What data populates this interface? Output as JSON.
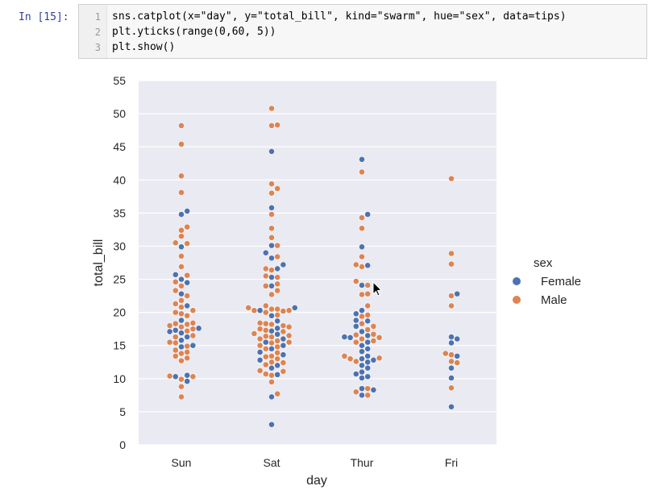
{
  "cell": {
    "prompt": "In [15]:",
    "line_numbers": [
      "1",
      "2",
      "3"
    ],
    "lines": [
      "sns.catplot(x=\"day\", y=\"total_bill\", kind=\"swarm\", hue=\"sex\", data=tips)",
      "plt.yticks(range(0,60, 5))",
      "plt.show()"
    ]
  },
  "chart_data": {
    "type": "scatter",
    "subtype": "swarm",
    "title": "",
    "xlabel": "day",
    "ylabel": "total_bill",
    "categories": [
      "Sun",
      "Sat",
      "Thur",
      "Fri"
    ],
    "ylim": [
      0,
      55
    ],
    "yticks": [
      "0",
      "5",
      "10",
      "15",
      "20",
      "25",
      "30",
      "35",
      "40",
      "45",
      "50",
      "55"
    ],
    "grid": true,
    "background": "#eaeaf2",
    "legend": {
      "title": "sex",
      "placement": "right"
    },
    "series": [
      {
        "name": "Female",
        "color": "#4c72b0",
        "points": {
          "Sun": [
            35.3,
            34.8,
            29.9,
            25.7,
            25.0,
            24.5,
            22.8,
            21.0,
            18.8,
            17.6,
            17.3,
            17.1,
            16.9,
            16.3,
            15.8,
            15.0,
            14.8,
            10.5,
            10.3,
            9.6
          ],
          "Sat": [
            44.3,
            35.8,
            30.1,
            29.0,
            28.2,
            27.2,
            26.6,
            25.3,
            24.0,
            20.7,
            20.3,
            19.5,
            18.7,
            17.6,
            17.2,
            16.7,
            16.0,
            15.5,
            15.0,
            14.5,
            14.0,
            13.6,
            12.8,
            12.0,
            11.6,
            10.6,
            7.25,
            3.07
          ],
          "Thur": [
            43.1,
            34.8,
            29.9,
            27.1,
            24.1,
            20.3,
            19.8,
            18.8,
            18.7,
            17.9,
            17.1,
            16.5,
            16.3,
            16.2,
            15.5,
            15.0,
            14.5,
            14.1,
            13.4,
            13.0,
            12.8,
            12.5,
            12.0,
            11.6,
            11.0,
            10.7,
            10.3,
            10.1,
            8.5,
            8.3,
            7.5
          ],
          "Fri": [
            22.8,
            16.3,
            16.0,
            15.4,
            13.4,
            11.6,
            10.1,
            5.75
          ]
        }
      },
      {
        "name": "Male",
        "color": "#dd8452",
        "points": {
          "Sun": [
            48.2,
            45.4,
            40.6,
            38.1,
            32.9,
            32.4,
            31.5,
            30.5,
            30.4,
            28.5,
            26.9,
            25.6,
            24.6,
            24.0,
            23.3,
            22.5,
            21.8,
            21.3,
            20.8,
            20.3,
            20.0,
            19.8,
            19.5,
            18.4,
            18.3,
            18.2,
            18.0,
            17.8,
            17.5,
            17.2,
            16.5,
            16.3,
            15.5,
            15.4,
            14.9,
            14.3,
            14.0,
            13.8,
            13.4,
            13.1,
            12.7,
            10.4,
            10.3,
            9.9,
            8.8,
            7.25
          ],
          "Sat": [
            50.8,
            48.3,
            48.2,
            39.4,
            38.7,
            38.0,
            34.8,
            32.7,
            31.3,
            30.1,
            28.4,
            26.6,
            26.4,
            25.5,
            25.3,
            24.3,
            24.0,
            23.3,
            22.7,
            21.0,
            20.7,
            20.5,
            20.5,
            20.3,
            20.3,
            20.2,
            20.0,
            19.6,
            18.4,
            18.3,
            18.2,
            18.0,
            17.8,
            17.5,
            17.3,
            17.1,
            16.8,
            16.5,
            16.4,
            16.3,
            16.0,
            15.7,
            15.5,
            15.4,
            15.0,
            14.8,
            14.5,
            13.9,
            13.4,
            13.3,
            13.0,
            12.5,
            12.4,
            12.1,
            11.2,
            11.1,
            10.7,
            10.5,
            9.5,
            7.7
          ],
          "Thur": [
            41.2,
            34.3,
            32.7,
            28.4,
            27.2,
            26.9,
            24.7,
            24.1,
            22.8,
            22.7,
            21.0,
            19.6,
            19.4,
            18.3,
            17.9,
            17.4,
            16.7,
            16.6,
            16.2,
            16.0,
            15.7,
            15.5,
            13.4,
            13.1,
            13.0,
            12.6,
            8.5,
            8.0,
            7.5
          ],
          "Fri": [
            40.2,
            28.9,
            27.3,
            22.5,
            21.0,
            13.8,
            13.6,
            12.6,
            12.4,
            8.6
          ]
        }
      }
    ]
  }
}
